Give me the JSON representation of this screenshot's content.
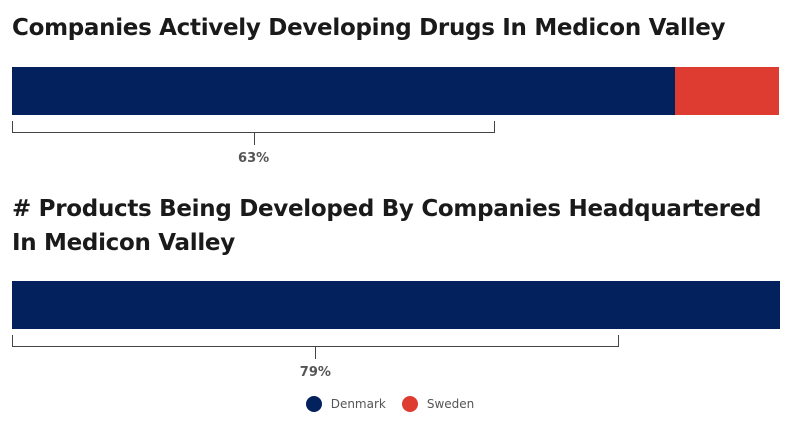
{
  "colors": {
    "denmark": "#03215c",
    "sweden": "#de3c31"
  },
  "legend": [
    {
      "label": "Denmark",
      "color": "#03215c"
    },
    {
      "label": "Sweden",
      "color": "#de3c31"
    }
  ],
  "chart_data": [
    {
      "type": "bar",
      "orientation": "horizontal-stacked-100",
      "title": "Companies Actively Developing Drugs In Medicon Valley",
      "series": [
        {
          "name": "Denmark",
          "value": 86.5
        },
        {
          "name": "Sweden",
          "value": 13.5
        }
      ],
      "bracket_fraction": 0.63,
      "bracket_label": "63%"
    },
    {
      "type": "bar",
      "orientation": "horizontal-stacked-100",
      "title": "# Products Being Developed By Companies Headquartered In Medicon Valley",
      "series": [
        {
          "name": "Denmark",
          "value": 100
        }
      ],
      "bracket_fraction": 0.79,
      "bracket_label": "79%"
    }
  ]
}
